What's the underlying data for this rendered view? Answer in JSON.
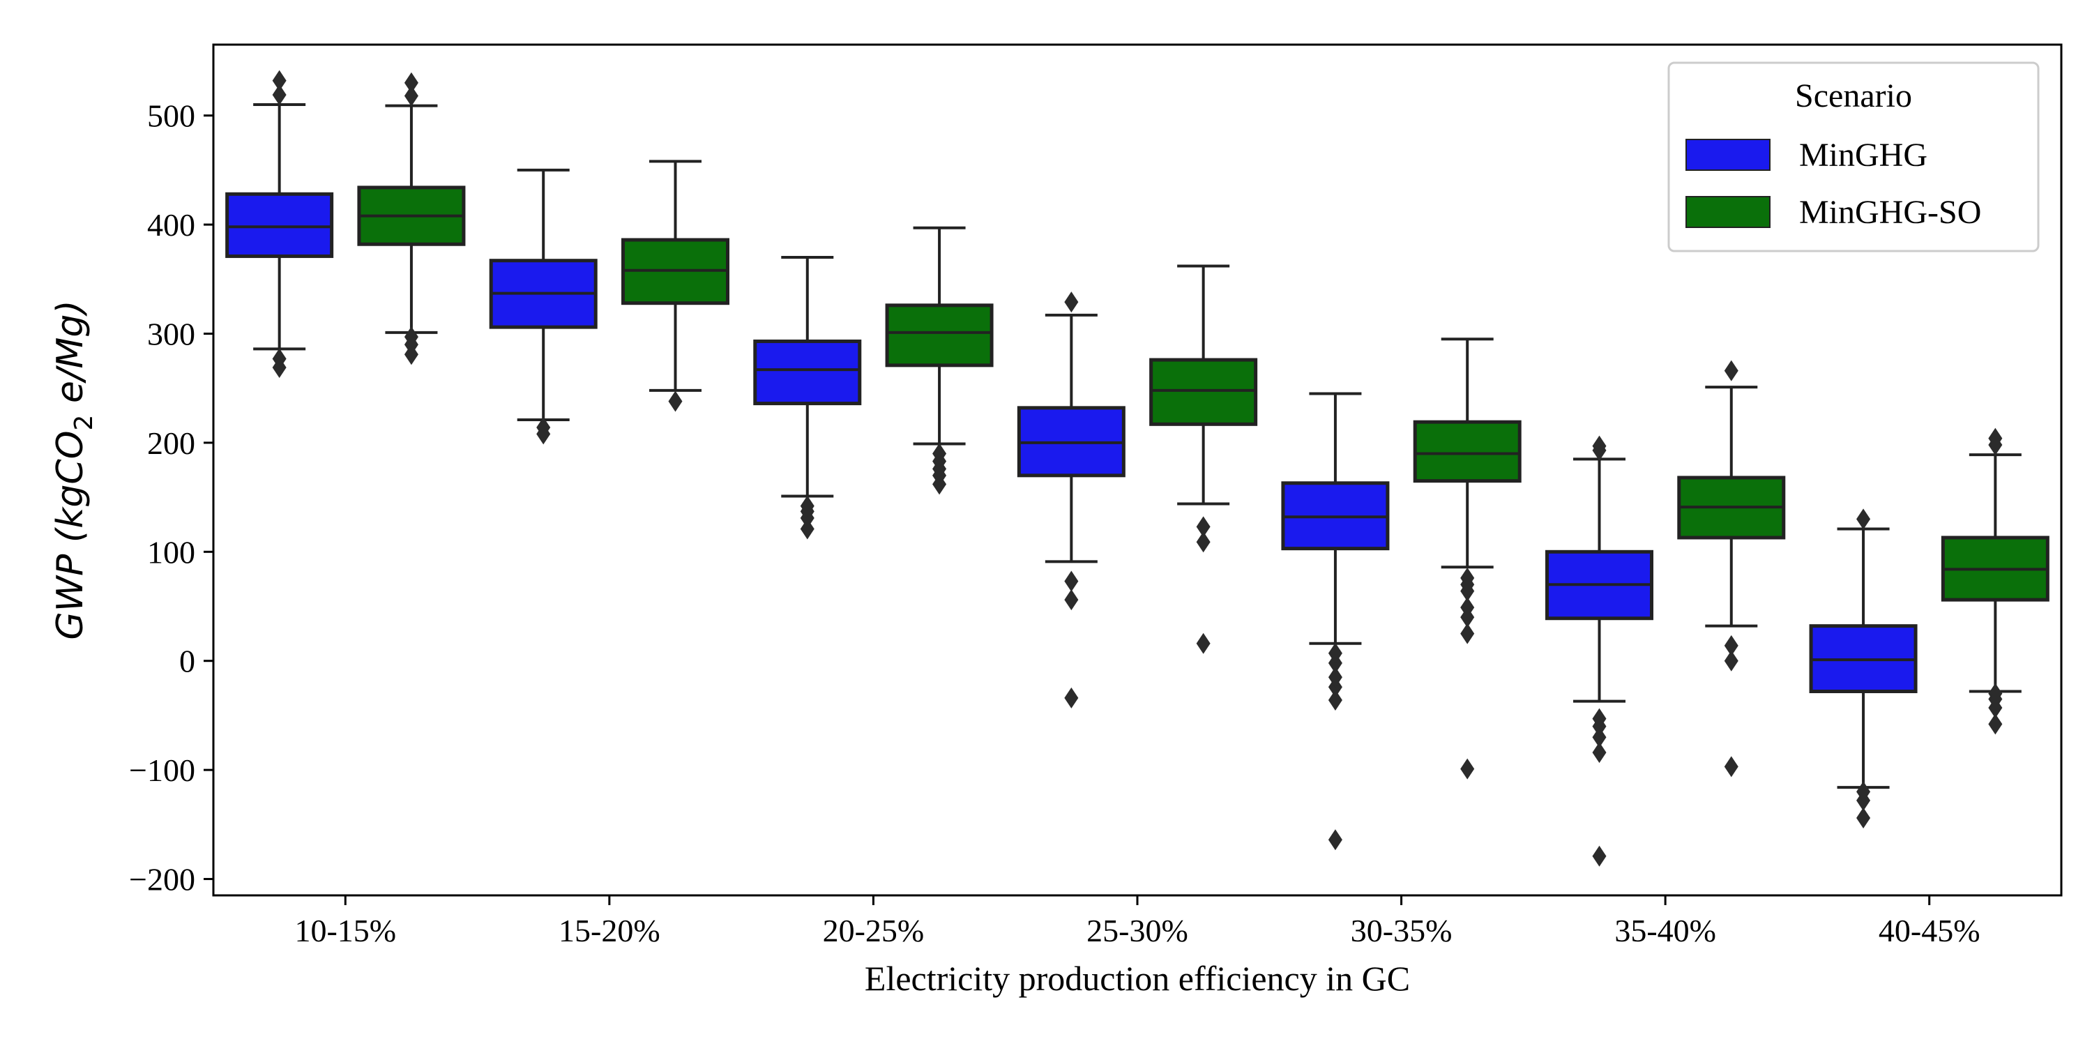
{
  "chart_data": {
    "type": "box",
    "xlabel": "Electricity production efficiency in GC",
    "ylabel": {
      "main": "GWP (kgCO",
      "sub": "2",
      "tail": " e/Mg)"
    },
    "ylim": [
      -215,
      565
    ],
    "yticks": [
      500,
      400,
      300,
      200,
      100,
      0,
      -100,
      -200
    ],
    "ytick_labels": [
      "500",
      "400",
      "300",
      "200",
      "100",
      "0",
      "−100",
      "−200"
    ],
    "grid": false,
    "legend": {
      "title": "Scenario",
      "position": "top-right"
    },
    "categories": [
      "10-15%",
      "15-20%",
      "20-25%",
      "25-30%",
      "30-35%",
      "35-40%",
      "40-45%"
    ],
    "series": [
      {
        "name": "MinGHG",
        "color": "#1a1aee",
        "boxes": [
          {
            "whislo": 286,
            "q1": 371,
            "med": 398,
            "q3": 428,
            "whishi": 510,
            "fliers": [
              269,
              277,
              519,
              532
            ]
          },
          {
            "whislo": 221,
            "q1": 306,
            "med": 337,
            "q3": 367,
            "whishi": 450,
            "fliers": [
              208,
              214
            ]
          },
          {
            "whislo": 151,
            "q1": 236,
            "med": 267,
            "q3": 293,
            "whishi": 370,
            "fliers": [
              121,
              131,
              137,
              142
            ]
          },
          {
            "whislo": 91,
            "q1": 170,
            "med": 200,
            "q3": 232,
            "whishi": 317,
            "fliers": [
              -34,
              56,
              73,
              329
            ]
          },
          {
            "whislo": 16,
            "q1": 103,
            "med": 132,
            "q3": 163,
            "whishi": 245,
            "fliers": [
              -164,
              -36,
              -24,
              -15,
              -2,
              7
            ]
          },
          {
            "whislo": -37,
            "q1": 39,
            "med": 70,
            "q3": 100,
            "whishi": 185,
            "fliers": [
              -179,
              -84,
              -70,
              -60,
              -53,
              193,
              197
            ]
          },
          {
            "whislo": -116,
            "q1": -28,
            "med": 1,
            "q3": 32,
            "whishi": 121,
            "fliers": [
              -144,
              -128,
              -120,
              130
            ]
          }
        ]
      },
      {
        "name": "MinGHG-SO",
        "color": "#0a700a",
        "boxes": [
          {
            "whislo": 301,
            "q1": 382,
            "med": 408,
            "q3": 434,
            "whishi": 509,
            "fliers": [
              281,
              290,
              297,
              518,
              530
            ]
          },
          {
            "whislo": 248,
            "q1": 328,
            "med": 358,
            "q3": 386,
            "whishi": 458,
            "fliers": [
              238
            ]
          },
          {
            "whislo": 199,
            "q1": 271,
            "med": 301,
            "q3": 326,
            "whishi": 397,
            "fliers": [
              162,
              170,
              176,
              183,
              190
            ]
          },
          {
            "whislo": 144,
            "q1": 217,
            "med": 248,
            "q3": 276,
            "whishi": 362,
            "fliers": [
              16,
              109,
              123
            ]
          },
          {
            "whislo": 86,
            "q1": 165,
            "med": 190,
            "q3": 219,
            "whishi": 295,
            "fliers": [
              -99,
              25,
              40,
              49,
              64,
              70,
              76
            ]
          },
          {
            "whislo": 32,
            "q1": 113,
            "med": 141,
            "q3": 168,
            "whishi": 251,
            "fliers": [
              -97,
              0,
              14,
              266
            ]
          },
          {
            "whislo": -28,
            "q1": 56,
            "med": 84,
            "q3": 113,
            "whishi": 189,
            "fliers": [
              -58,
              -43,
              -35,
              -30,
              198,
              204
            ]
          }
        ]
      }
    ]
  }
}
